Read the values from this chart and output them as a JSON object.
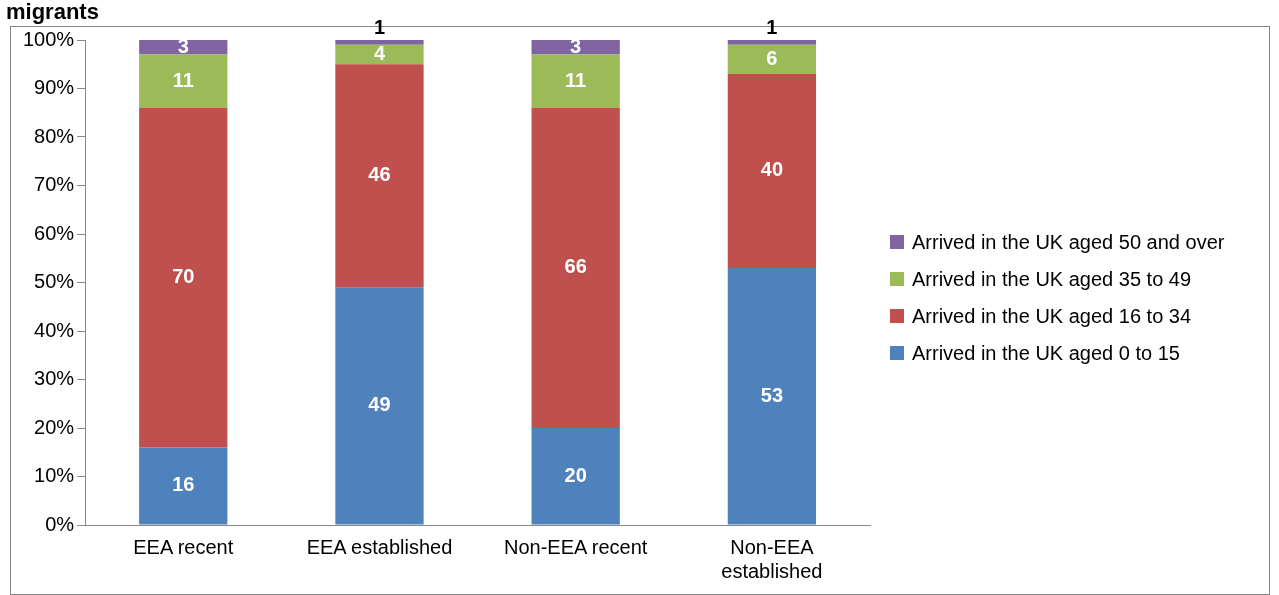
{
  "chart_data": {
    "type": "bar",
    "title": "migrants",
    "stacked": true,
    "categories": [
      "EEA recent",
      "EEA established",
      "Non-EEA recent",
      "Non-EEA established"
    ],
    "series": [
      {
        "name": "Arrived in the UK aged 0 to 15",
        "color": "#4f81bd",
        "values": [
          16,
          49,
          20,
          53
        ]
      },
      {
        "name": "Arrived in the UK aged 16 to 34",
        "color": "#c0504d",
        "values": [
          70,
          46,
          66,
          40
        ]
      },
      {
        "name": "Arrived in the UK aged 35 to 49",
        "color": "#9bbb59",
        "values": [
          11,
          4,
          11,
          6
        ]
      },
      {
        "name": "Arrived in the UK aged 50 and over",
        "color": "#8064a2",
        "values": [
          3,
          1,
          3,
          1
        ]
      }
    ],
    "ylim": [
      0,
      100
    ],
    "yticks": [
      {
        "value": 0,
        "label": "0%"
      },
      {
        "value": 10,
        "label": "10%"
      },
      {
        "value": 20,
        "label": "20%"
      },
      {
        "value": 30,
        "label": "30%"
      },
      {
        "value": 40,
        "label": "40%"
      },
      {
        "value": 50,
        "label": "50%"
      },
      {
        "value": 60,
        "label": "60%"
      },
      {
        "value": 70,
        "label": "70%"
      },
      {
        "value": 80,
        "label": "80%"
      },
      {
        "value": 90,
        "label": "90%"
      },
      {
        "value": 100,
        "label": "100%"
      }
    ],
    "grid": false,
    "legend": "right",
    "data_labels": true
  }
}
